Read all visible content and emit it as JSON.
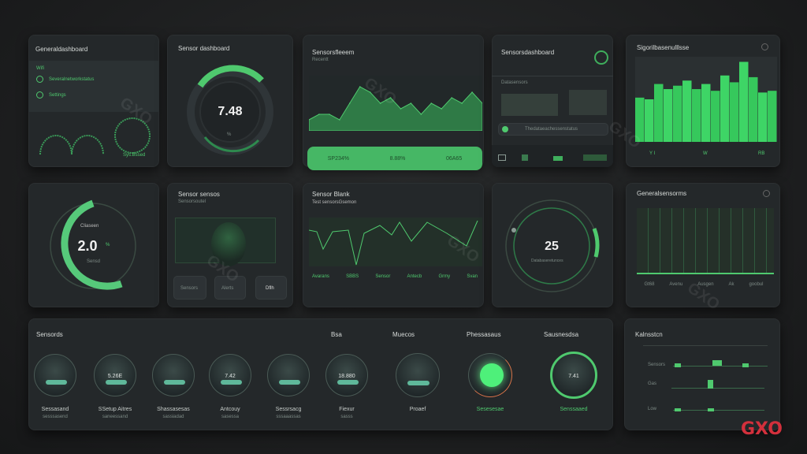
{
  "cards": {
    "c1": {
      "title": "Generaldashboard",
      "items": [
        "Wifi",
        "Severalnetworkstatus",
        "Settings"
      ],
      "gauge_label": "Sys.Bssed"
    },
    "c2": {
      "title": "Sensor dashboard",
      "value": "7.48",
      "unit": "%",
      "progress": 0.62
    },
    "c3": {
      "title": "Sensorsfleeem",
      "subtitle": "Recentt",
      "bar_items": [
        "SP234%",
        "8.88%",
        "06A65"
      ]
    },
    "c4": {
      "title": "Sensorsdashboard",
      "section": "Datasensors",
      "row_text": "Thedataeachessenstatus"
    },
    "c5": {
      "title": "Sigorilbasenulllsse",
      "labels": [
        "Y I",
        "W",
        "RB"
      ]
    },
    "c6": {
      "label": "Cliaseen",
      "value": "2.0",
      "unit": "%",
      "sub": "Sensd",
      "progress": 0.72
    },
    "c7": {
      "title": "Sensor sensos",
      "subtitle": "Sensorsoutel",
      "tiles": [
        "Sensors",
        "Alerts",
        "Dflh"
      ]
    },
    "c8": {
      "title": "Sensor Blank",
      "subtitle": "Test sensorsGsemon",
      "labels": [
        "Avarans",
        "SBBS",
        "Sensor",
        "Antecb",
        "Grmy",
        "Svan"
      ]
    },
    "c9": {
      "value": "25",
      "sub": "Databaseretunces",
      "progress": 0.15
    },
    "c10": {
      "title": "Generalsensorms",
      "labels": [
        "Gt68",
        "Avenu",
        "Ausgen",
        "Ak",
        "goobul"
      ]
    },
    "c11": {
      "title": "Sensords",
      "headers": [
        "Bsa",
        "Muecos",
        "Phessasaus",
        "Sausnesdsa"
      ],
      "dials": [
        {
          "name": "Sessasand",
          "sub": "sesssasend"
        },
        {
          "name": "SSetup Aitres",
          "sub": "saneessand",
          "value": "5.26E"
        },
        {
          "name": "Shassasesas",
          "sub": "sassiadad"
        },
        {
          "name": "Antcouy",
          "sub": "sasessa",
          "value": "7.42"
        },
        {
          "name": "Sessrsacg",
          "sub": "sssaaassas"
        },
        {
          "name": "Fiexur",
          "sub": "sasss",
          "value": "18.880"
        },
        {
          "name": "Proaef",
          "sub": ""
        },
        {
          "name": "Sesesesae",
          "sub": ""
        },
        {
          "name": "Senssaaed",
          "sub": "",
          "value": "7.41"
        }
      ],
      "accent_orange": "#d9734a"
    },
    "c12": {
      "title": "Kalnsstcn",
      "rows": [
        "Sensors",
        "Gas",
        "Low"
      ]
    }
  },
  "brand": {
    "watermark": "GXO",
    "logo": "GXO"
  },
  "colors": {
    "accent": "#4fc96e",
    "bg": "#1e1f20",
    "card": "#24282a"
  },
  "chart_data": [
    {
      "type": "area",
      "values": [
        2,
        3,
        3,
        2,
        5,
        8,
        7,
        5,
        6,
        4,
        5,
        3,
        5,
        4,
        6,
        5,
        7,
        5
      ],
      "series_color": "#4fc96e"
    },
    {
      "type": "bar",
      "values": [
        52,
        50,
        68,
        62,
        66,
        72,
        62,
        68,
        60,
        78,
        70,
        94,
        76,
        58,
        60
      ]
    }
  ]
}
